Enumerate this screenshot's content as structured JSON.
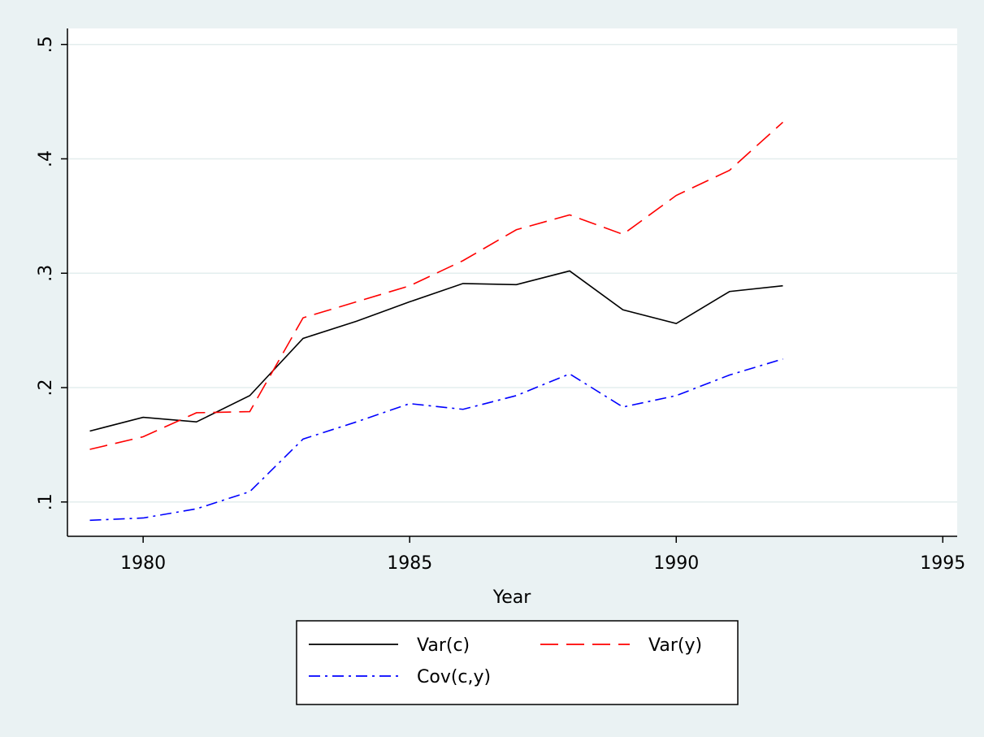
{
  "chart_data": {
    "type": "line",
    "x_label": "Year",
    "x": [
      1979,
      1980,
      1981,
      1982,
      1983,
      1984,
      1985,
      1986,
      1987,
      1988,
      1989,
      1990,
      1991,
      1992
    ],
    "series": [
      {
        "name": "Var(c)",
        "color": "#000000",
        "style": "solid",
        "values": [
          0.162,
          0.174,
          0.17,
          0.193,
          0.243,
          0.258,
          0.275,
          0.291,
          0.29,
          0.302,
          0.268,
          0.256,
          0.284,
          0.289
        ]
      },
      {
        "name": "Var(y)",
        "color": "#ff0000",
        "style": "dashed",
        "values": [
          0.146,
          0.157,
          0.178,
          0.179,
          0.261,
          0.275,
          0.289,
          0.311,
          0.338,
          0.351,
          0.334,
          0.368,
          0.39,
          0.432
        ]
      },
      {
        "name": "Cov(c,y)",
        "color": "#0000ff",
        "style": "dashdot",
        "values": [
          0.084,
          0.086,
          0.094,
          0.109,
          0.155,
          0.17,
          0.186,
          0.181,
          0.193,
          0.212,
          0.183,
          0.193,
          0.211,
          0.225
        ]
      }
    ],
    "xlim": [
      1978.58,
      1995.27
    ],
    "xticks": [
      1980,
      1985,
      1990,
      1995
    ],
    "ylim": [
      0.07,
      0.514
    ],
    "yticks": [
      {
        "value": 0.1,
        "label": ".1"
      },
      {
        "value": 0.2,
        "label": ".2"
      },
      {
        "value": 0.3,
        "label": ".3"
      },
      {
        "value": 0.4,
        "label": ".4"
      },
      {
        "value": 0.5,
        "label": ".5"
      }
    ],
    "grid": true
  }
}
